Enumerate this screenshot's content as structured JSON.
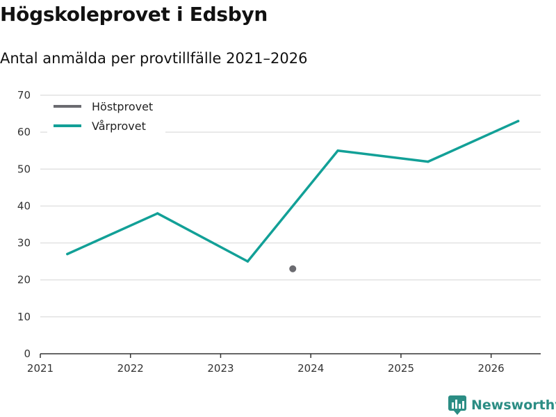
{
  "title": "Högskoleprovet i Edsbyn",
  "subtitle": "Antal anmälda per provtillfälle 2021–2026",
  "brand": {
    "name": "Newsworthy",
    "icon": "newsworthy-logo-icon",
    "color": "#2b8d84"
  },
  "chart_data": {
    "type": "line",
    "title": "Högskoleprovet i Edsbyn",
    "subtitle": "Antal anmälda per provtillfälle 2021–2026",
    "xlabel": "",
    "ylabel": "",
    "xlim": [
      2021,
      2026.55
    ],
    "ylim": [
      0,
      70
    ],
    "x_ticks": [
      "2021",
      "2022",
      "2023",
      "2024",
      "2025",
      "2026"
    ],
    "y_ticks": [
      "0",
      "10",
      "20",
      "30",
      "40",
      "50",
      "60",
      "70"
    ],
    "grid": true,
    "legend_position": "top-left",
    "series": [
      {
        "name": "Höstprovet",
        "color": "#6b6b70",
        "x": [
          2023.8
        ],
        "values": [
          23
        ]
      },
      {
        "name": "Vårprovet",
        "color": "#12a097",
        "x": [
          2021.3,
          2022.3,
          2023.3,
          2024.3,
          2025.3,
          2026.3
        ],
        "values": [
          27,
          38,
          25,
          55,
          52,
          63
        ]
      }
    ]
  }
}
